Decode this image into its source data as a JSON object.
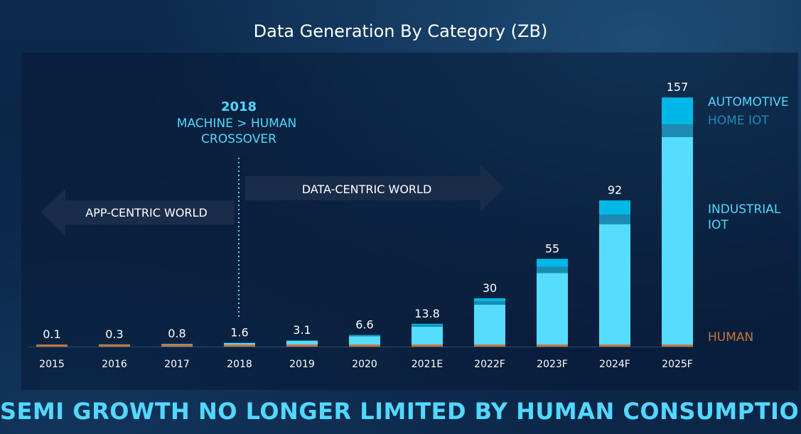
{
  "slide": {
    "headline": "SEMI GROWTH NO LONGER LIMITED BY HUMAN CONSUMPTION"
  },
  "colors": {
    "background": "#0b2445",
    "title_text": "#ffffff",
    "accent_cyan": "#52d8ff",
    "automotive": "#00b8e8",
    "home_iot": "#1b8bb4",
    "industrial_iot": "#55dcff",
    "human": "#c8763a",
    "annotation_text": "#52d8ff",
    "arrow_fill": "#1a2d4a"
  },
  "annotations": {
    "crossover_year": "2018",
    "crossover_line1": "MACHINE > HUMAN",
    "crossover_line2": "CROSSOVER",
    "app_centric": "APP-CENTRIC WORLD",
    "data_centric": "DATA-CENTRIC WORLD"
  },
  "chart_data": {
    "type": "bar",
    "stacked": true,
    "title": "Data Generation By Category (ZB)",
    "categories": [
      "2015",
      "2016",
      "2017",
      "2018",
      "2019",
      "2020",
      "2021E",
      "2022F",
      "2023F",
      "2024F",
      "2025F"
    ],
    "totals": [
      0.1,
      0.3,
      0.8,
      1.6,
      3.1,
      6.6,
      13.8,
      30,
      55,
      92,
      157
    ],
    "total_labels": [
      "0.1",
      "0.3",
      "0.8",
      "1.6",
      "3.1",
      "6.6",
      "13.8",
      "30",
      "55",
      "92",
      "157"
    ],
    "series": [
      {
        "name": "HUMAN",
        "values": [
          0.1,
          0.2,
          0.4,
          0.5,
          0.5,
          0.6,
          0.7,
          0.8,
          0.9,
          1.0,
          1.0
        ]
      },
      {
        "name": "INDUSTRIAL IOT",
        "values": [
          0.0,
          0.1,
          0.3,
          0.9,
          2.3,
          5.2,
          11.3,
          25.2,
          45.1,
          76.0,
          131.0
        ]
      },
      {
        "name": "HOME IOT",
        "values": [
          0.0,
          0.0,
          0.05,
          0.1,
          0.15,
          0.4,
          0.9,
          2.0,
          4.0,
          6.0,
          8.0
        ]
      },
      {
        "name": "AUTOMOTIVE",
        "values": [
          0.0,
          0.0,
          0.05,
          0.1,
          0.15,
          0.4,
          0.9,
          2.0,
          5.0,
          9.0,
          17.0
        ]
      }
    ],
    "legend": {
      "placement": "right",
      "automotive": "AUTOMOTIVE",
      "home_iot": "HOME IOT",
      "industrial_iot_line1": "INDUSTRIAL",
      "industrial_iot_line2": "IOT",
      "human": "HUMAN"
    },
    "ylim": [
      0,
      157
    ],
    "grid": false,
    "xlabel": "",
    "ylabel": ""
  }
}
